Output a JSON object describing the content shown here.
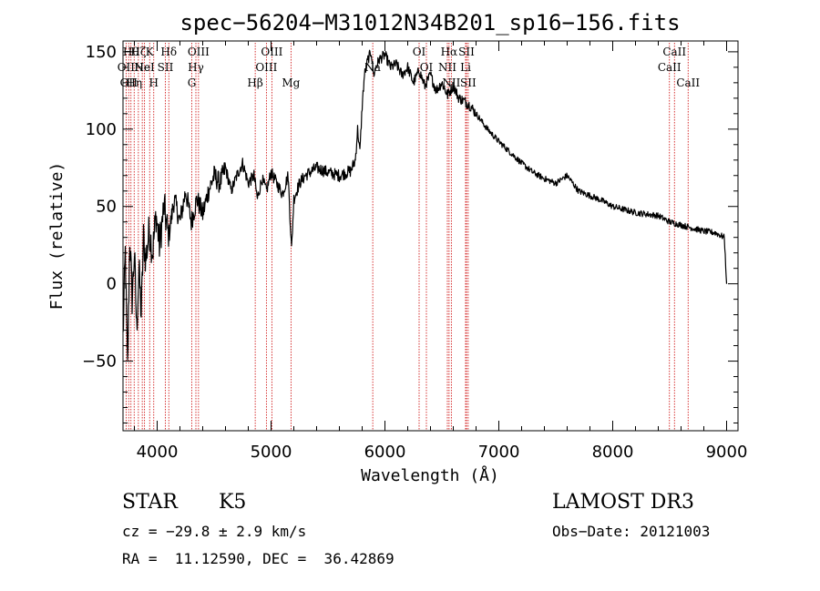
{
  "chart_data": {
    "type": "line",
    "title": "spec−56204−M31012N34B201_sp16−156.fits",
    "xlabel": "Wavelength (Å)",
    "ylabel": "Flux (relative)",
    "xlim": [
      3700,
      9100
    ],
    "ylim": [
      -95,
      157
    ],
    "xticks": [
      4000,
      5000,
      6000,
      7000,
      8000,
      9000
    ],
    "xtick_labels": [
      "4000",
      "5000",
      "6000",
      "7000",
      "8000",
      "9000"
    ],
    "yticks": [
      -50,
      0,
      50,
      100,
      150
    ],
    "ytick_labels": [
      "−50",
      "0",
      "50",
      "100",
      "150"
    ],
    "series": [
      {
        "name": "spectrum",
        "x": [
          3700,
          3720,
          3740,
          3760,
          3780,
          3800,
          3820,
          3840,
          3860,
          3880,
          3900,
          3930,
          3960,
          3990,
          4020,
          4060,
          4100,
          4150,
          4200,
          4250,
          4300,
          4350,
          4400,
          4450,
          4500,
          4550,
          4600,
          4650,
          4700,
          4750,
          4800,
          4850,
          4880,
          4920,
          4960,
          5000,
          5050,
          5100,
          5150,
          5180,
          5200,
          5250,
          5300,
          5400,
          5500,
          5600,
          5700,
          5740,
          5760,
          5780,
          5800,
          5820,
          5850,
          5880,
          5900,
          5920,
          5950,
          6000,
          6050,
          6100,
          6150,
          6200,
          6250,
          6300,
          6350,
          6400,
          6450,
          6500,
          6550,
          6600,
          6650,
          6700,
          6750,
          6800,
          6900,
          7000,
          7100,
          7200,
          7300,
          7400,
          7500,
          7600,
          7700,
          7800,
          7900,
          8000,
          8100,
          8200,
          8300,
          8400,
          8500,
          8600,
          8700,
          8800,
          8900,
          8980,
          9000
        ],
        "y": [
          -35,
          20,
          -55,
          30,
          -10,
          20,
          -30,
          10,
          -20,
          30,
          15,
          35,
          20,
          45,
          25,
          50,
          30,
          55,
          40,
          60,
          40,
          55,
          45,
          60,
          70,
          65,
          75,
          60,
          70,
          78,
          65,
          70,
          55,
          68,
          60,
          72,
          65,
          58,
          70,
          22,
          55,
          65,
          70,
          75,
          72,
          70,
          73,
          80,
          100,
          85,
          115,
          135,
          145,
          150,
          135,
          140,
          145,
          148,
          140,
          142,
          135,
          140,
          130,
          138,
          128,
          135,
          125,
          130,
          122,
          128,
          120,
          118,
          115,
          110,
          100,
          92,
          85,
          78,
          72,
          68,
          65,
          70,
          60,
          57,
          54,
          50,
          48,
          46,
          45,
          44,
          40,
          38,
          36,
          34,
          33,
          30,
          0
        ]
      }
    ],
    "line_markers": [
      {
        "wavelength": 3727,
        "label": "OII",
        "row": 2
      },
      {
        "wavelength": 3750,
        "label": "OII",
        "row": 3
      },
      {
        "wavelength": 3770,
        "label": "Hθ",
        "row": 1
      },
      {
        "wavelength": 3798,
        "label": "Hη",
        "row": 3
      },
      {
        "wavelength": 3835,
        "label": "Hζ",
        "row": 1
      },
      {
        "wavelength": 3869,
        "label": "Ne",
        "row": 2
      },
      {
        "wavelength": 3889,
        "label": "HeI",
        "row": 2
      },
      {
        "wavelength": 3934,
        "label": "K",
        "row": 1
      },
      {
        "wavelength": 3970,
        "label": "H",
        "row": 3
      },
      {
        "wavelength": 4072,
        "label": "SII",
        "row": 2
      },
      {
        "wavelength": 4102,
        "label": "Hδ",
        "row": 1
      },
      {
        "wavelength": 4304,
        "label": "G",
        "row": 3
      },
      {
        "wavelength": 4340,
        "label": "Hγ",
        "row": 2
      },
      {
        "wavelength": 4363,
        "label": "OIII",
        "row": 1
      },
      {
        "wavelength": 4861,
        "label": "Hβ",
        "row": 3
      },
      {
        "wavelength": 4959,
        "label": "OIII",
        "row": 2
      },
      {
        "wavelength": 5007,
        "label": "OIII",
        "row": 1
      },
      {
        "wavelength": 5175,
        "label": "Mg",
        "row": 3
      },
      {
        "wavelength": 5893,
        "label": "Na",
        "row": 2
      },
      {
        "wavelength": 6300,
        "label": "OI",
        "row": 1
      },
      {
        "wavelength": 6364,
        "label": "OI",
        "row": 2
      },
      {
        "wavelength": 6548,
        "label": "NII",
        "row": 2
      },
      {
        "wavelength": 6563,
        "label": "Hα",
        "row": 1
      },
      {
        "wavelength": 6583,
        "label": "NII",
        "row": 3
      },
      {
        "wavelength": 6708,
        "label": "Li",
        "row": 2
      },
      {
        "wavelength": 6716,
        "label": "SII",
        "row": 1
      },
      {
        "wavelength": 6731,
        "label": "SII",
        "row": 3
      },
      {
        "wavelength": 8498,
        "label": "CaII",
        "row": 2
      },
      {
        "wavelength": 8542,
        "label": "CaII",
        "row": 1
      },
      {
        "wavelength": 8662,
        "label": "CaII",
        "row": 3
      }
    ]
  },
  "info": {
    "object_class": "STAR",
    "subclass": "K5",
    "redshift": "cz = −29.8 ± 2.9 km/s",
    "coords": "RA =  11.12590, DEC =  36.42869",
    "survey": "LAMOST DR3",
    "obs_date": "Obs−Date: 20121003"
  },
  "colors": {
    "line_marker": "#cc0000",
    "spectrum": "#000000",
    "axes": "#000000"
  }
}
